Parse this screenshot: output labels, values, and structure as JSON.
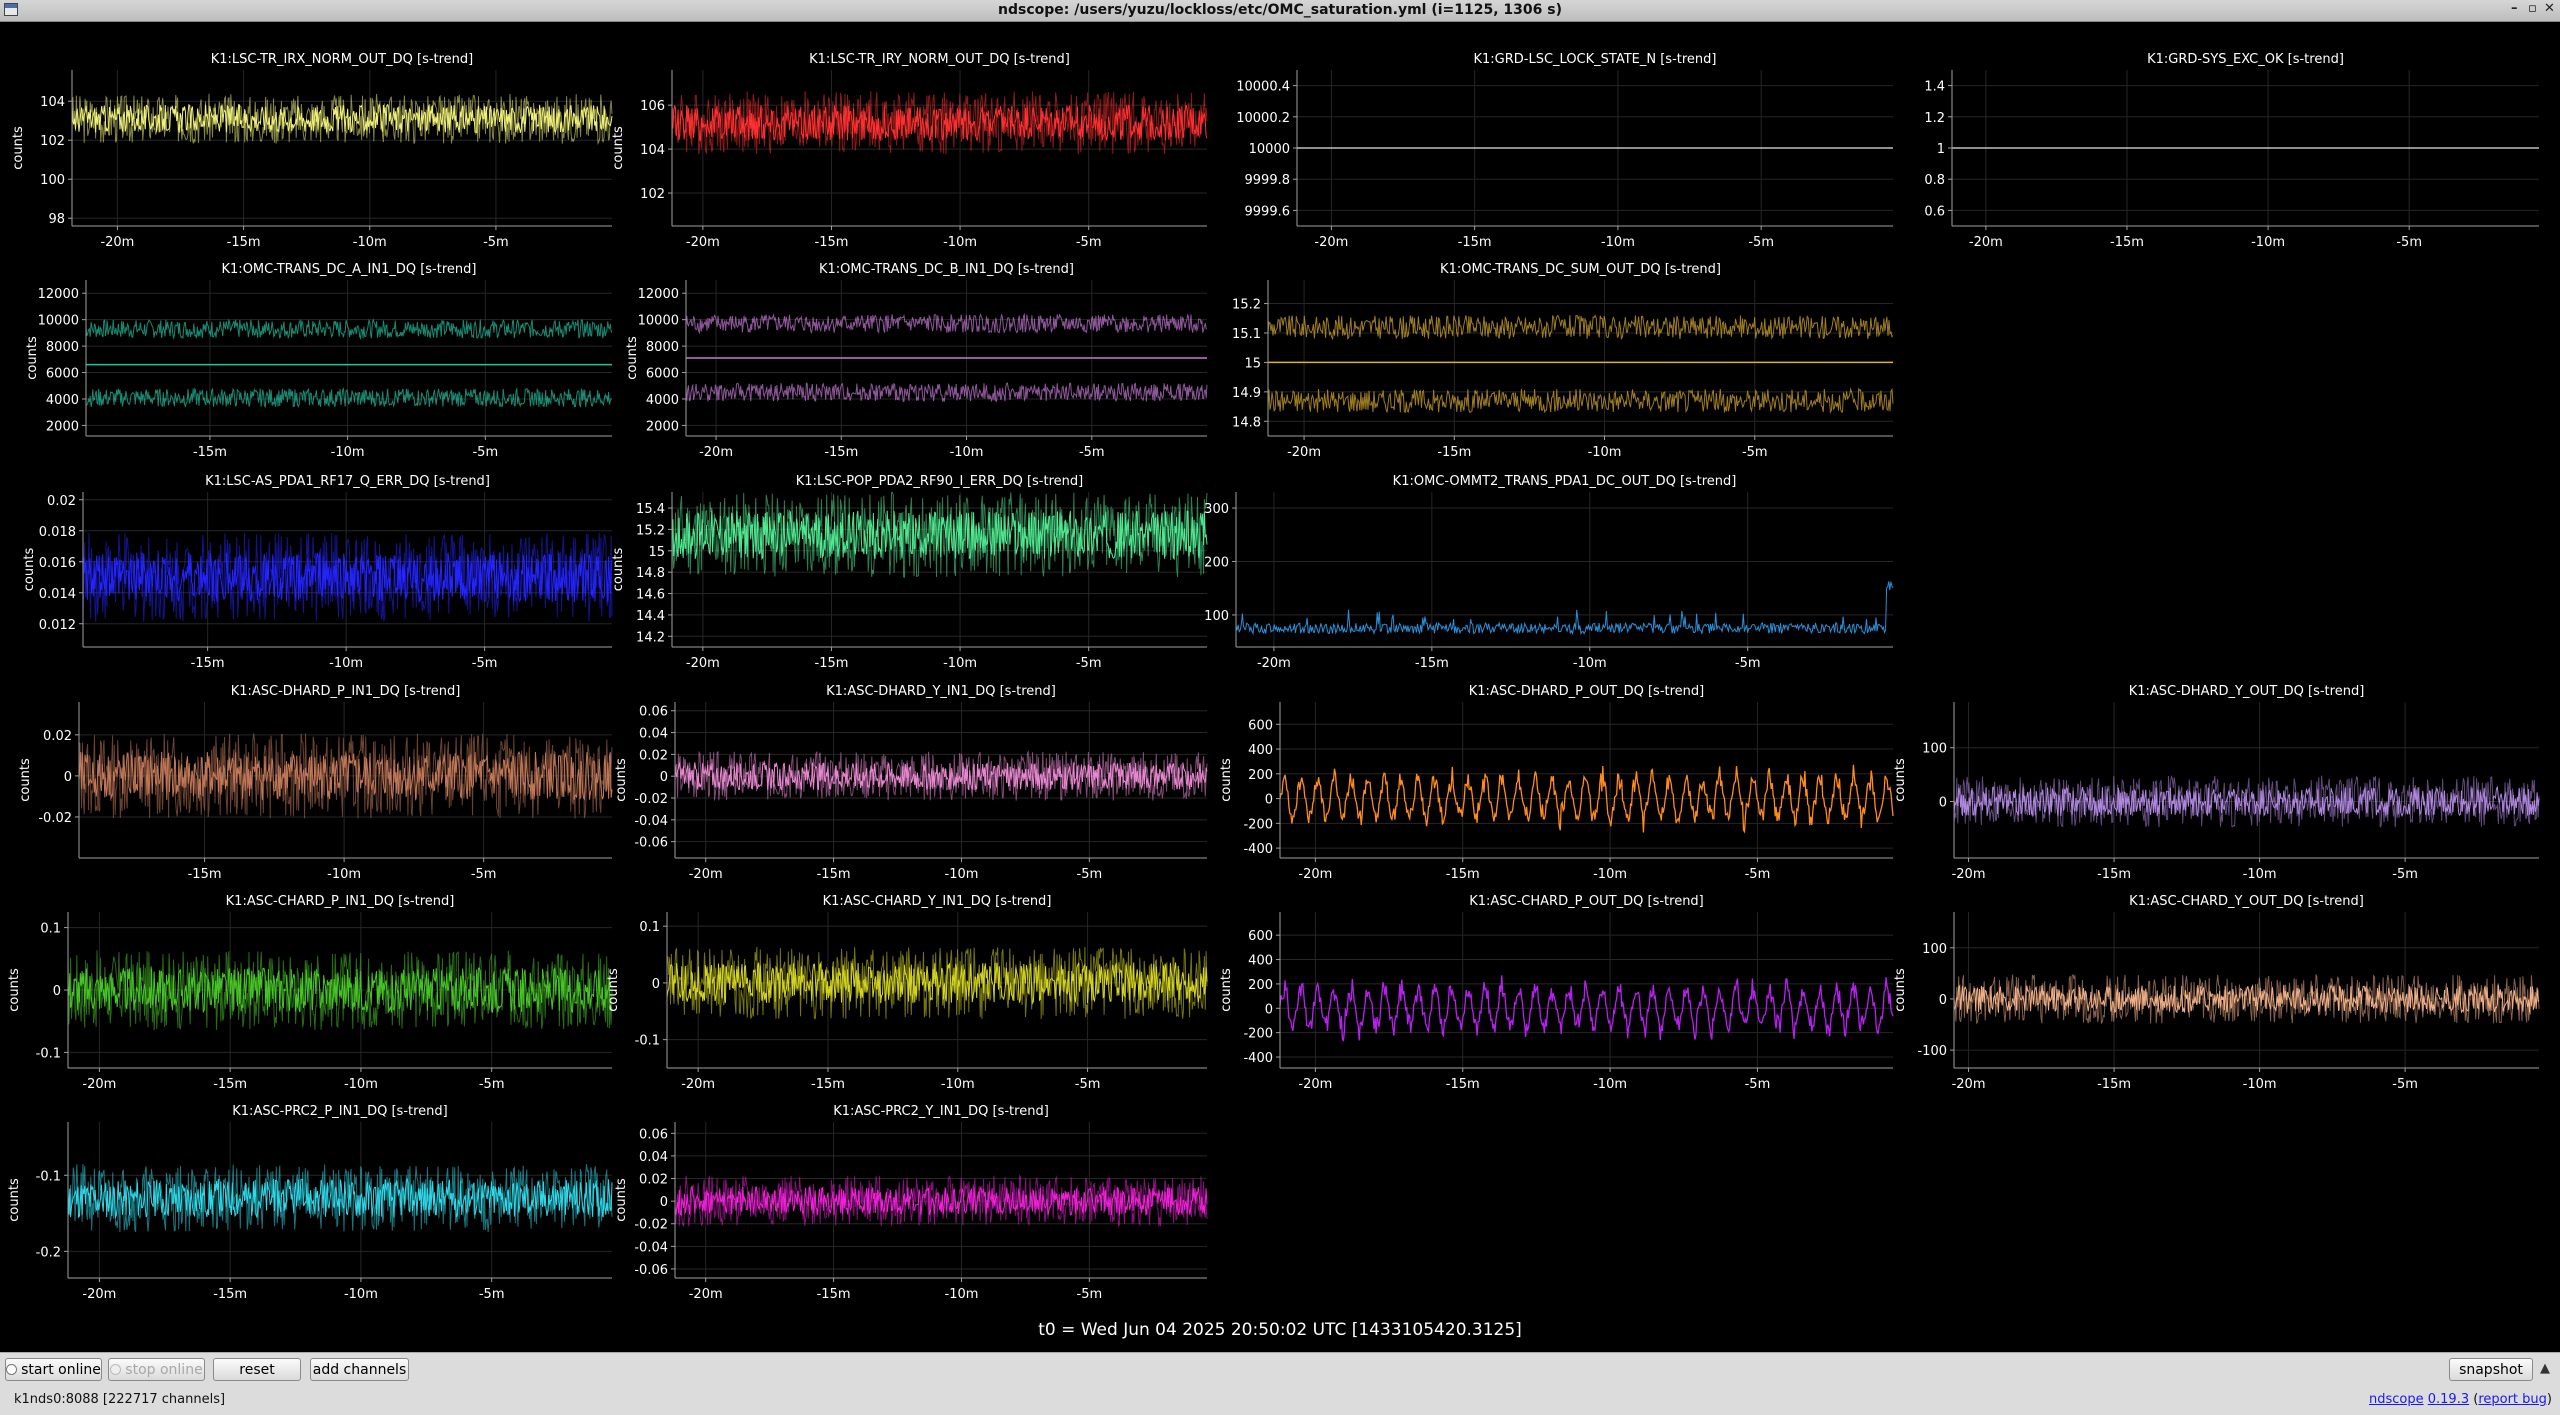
{
  "window": {
    "title": "ndscope: /users/yuzu/lockloss/etc/OMC_saturation.yml (i=1125, 1306 s)",
    "minimize": "–",
    "maximize": "▫",
    "close": "✕"
  },
  "colors": {
    "background": "#000000",
    "grid": "#2a2a2a",
    "axis": "#9a9a9a",
    "text": "#ffffff"
  },
  "chart_data": [
    {
      "type": "line",
      "title": "K1:LSC-TR_IRX_NORM_OUT_DQ [s-trend]",
      "ylabel": "counts",
      "xlim": [
        -21.8,
        -0.4
      ],
      "ylim": [
        97.6,
        105.6
      ],
      "yticks": [
        {
          "v": 104,
          "label": "104"
        },
        {
          "v": 102,
          "label": "102"
        },
        {
          "v": 100,
          "label": "100"
        },
        {
          "v": 98,
          "label": "98"
        }
      ],
      "xticks": [
        {
          "v": -20,
          "label": "-20m"
        },
        {
          "v": -15,
          "label": "-15m"
        },
        {
          "v": -10,
          "label": "-10m"
        },
        {
          "v": -5,
          "label": "-5m"
        }
      ],
      "color": "#f0f07a",
      "shape": "noisy",
      "center": 103.1,
      "amp": 0.8,
      "grid": true
    },
    {
      "type": "line",
      "title": "K1:LSC-TR_IRY_NORM_OUT_DQ [s-trend]",
      "ylabel": "counts",
      "xlim": [
        -21.2,
        -0.4
      ],
      "ylim": [
        100.5,
        107.6
      ],
      "yticks": [
        {
          "v": 106,
          "label": "106"
        },
        {
          "v": 104,
          "label": "104"
        },
        {
          "v": 102,
          "label": "102"
        }
      ],
      "xticks": [
        {
          "v": -20,
          "label": "-20m"
        },
        {
          "v": -15,
          "label": "-15m"
        },
        {
          "v": -10,
          "label": "-10m"
        },
        {
          "v": -5,
          "label": "-5m"
        }
      ],
      "color": "#ff3030",
      "shape": "noisy",
      "center": 105.2,
      "amp": 0.9,
      "grid": true
    },
    {
      "type": "line",
      "title": "K1:GRD-LSC_LOCK_STATE_N [s-trend]",
      "ylabel": "",
      "xlim": [
        -21.2,
        -0.4
      ],
      "ylim": [
        9999.5,
        10000.5
      ],
      "yticks": [
        {
          "v": 10000.4,
          "label": "10000.4"
        },
        {
          "v": 10000.2,
          "label": "10000.2"
        },
        {
          "v": 10000,
          "label": "10000"
        },
        {
          "v": 9999.8,
          "label": "9999.8"
        },
        {
          "v": 9999.6,
          "label": "9999.6"
        }
      ],
      "xticks": [
        {
          "v": -20,
          "label": "-20m"
        },
        {
          "v": -15,
          "label": "-15m"
        },
        {
          "v": -10,
          "label": "-10m"
        },
        {
          "v": -5,
          "label": "-5m"
        }
      ],
      "color": "#e6e6e6",
      "shape": "flat",
      "center": 10000,
      "amp": 0,
      "grid": true
    },
    {
      "type": "line",
      "title": "K1:GRD-SYS_EXC_OK [s-trend]",
      "ylabel": "",
      "xlim": [
        -21.2,
        -0.4
      ],
      "ylim": [
        0.5,
        1.5
      ],
      "yticks": [
        {
          "v": 1.4,
          "label": "1.4"
        },
        {
          "v": 1.2,
          "label": "1.2"
        },
        {
          "v": 1,
          "label": "1"
        },
        {
          "v": 0.8,
          "label": "0.8"
        },
        {
          "v": 0.6,
          "label": "0.6"
        }
      ],
      "xticks": [
        {
          "v": -20,
          "label": "-20m"
        },
        {
          "v": -15,
          "label": "-15m"
        },
        {
          "v": -10,
          "label": "-10m"
        },
        {
          "v": -5,
          "label": "-5m"
        }
      ],
      "color": "#e6e6e6",
      "shape": "flat",
      "center": 1,
      "amp": 0,
      "grid": true
    },
    {
      "type": "line",
      "title": "K1:OMC-TRANS_DC_A_IN1_DQ [s-trend]",
      "ylabel": "counts",
      "xlim": [
        -19.5,
        -0.4
      ],
      "ylim": [
        1200,
        13000
      ],
      "yticks": [
        {
          "v": 12000,
          "label": "12000"
        },
        {
          "v": 10000,
          "label": "10000"
        },
        {
          "v": 8000,
          "label": "8000"
        },
        {
          "v": 6000,
          "label": "6000"
        },
        {
          "v": 4000,
          "label": "4000"
        },
        {
          "v": 2000,
          "label": "2000"
        }
      ],
      "xticks": [
        {
          "v": -15,
          "label": "-15m"
        },
        {
          "v": -10,
          "label": "-10m"
        },
        {
          "v": -5,
          "label": "-5m"
        }
      ],
      "color": "#22c4a4",
      "shape": "split",
      "center": 6600,
      "band_hi": 9300,
      "band_lo": 4100,
      "amp": 700,
      "grid": true
    },
    {
      "type": "line",
      "title": "K1:OMC-TRANS_DC_B_IN1_DQ [s-trend]",
      "ylabel": "counts",
      "xlim": [
        -21.2,
        -0.4
      ],
      "ylim": [
        1200,
        13000
      ],
      "yticks": [
        {
          "v": 12000,
          "label": "12000"
        },
        {
          "v": 10000,
          "label": "10000"
        },
        {
          "v": 8000,
          "label": "8000"
        },
        {
          "v": 6000,
          "label": "6000"
        },
        {
          "v": 4000,
          "label": "4000"
        },
        {
          "v": 2000,
          "label": "2000"
        }
      ],
      "xticks": [
        {
          "v": -20,
          "label": "-20m"
        },
        {
          "v": -15,
          "label": "-15m"
        },
        {
          "v": -10,
          "label": "-10m"
        },
        {
          "v": -5,
          "label": "-5m"
        }
      ],
      "color": "#c87ad8",
      "shape": "split",
      "center": 7100,
      "band_hi": 9700,
      "band_lo": 4500,
      "amp": 700,
      "grid": true
    },
    {
      "type": "line",
      "title": "K1:OMC-TRANS_DC_SUM_OUT_DQ [s-trend]",
      "ylabel": "",
      "xlim": [
        -21.2,
        -0.4
      ],
      "ylim": [
        14.75,
        15.28
      ],
      "yticks": [
        {
          "v": 15.2,
          "label": "15.2"
        },
        {
          "v": 15.1,
          "label": "15.1"
        },
        {
          "v": 15,
          "label": "15"
        },
        {
          "v": 14.9,
          "label": "14.9"
        },
        {
          "v": 14.8,
          "label": "14.8"
        }
      ],
      "xticks": [
        {
          "v": -20,
          "label": "-20m"
        },
        {
          "v": -15,
          "label": "-15m"
        },
        {
          "v": -10,
          "label": "-10m"
        },
        {
          "v": -5,
          "label": "-5m"
        }
      ],
      "color": "#e0b030",
      "shape": "split",
      "center": 15.0,
      "band_hi": 15.12,
      "band_lo": 14.87,
      "amp": 0.04,
      "grid": true
    },
    {
      "type": "line",
      "title": "K1:LSC-AS_PDA1_RF17_Q_ERR_DQ [s-trend]",
      "ylabel": "counts",
      "xlim": [
        -19.5,
        -0.4
      ],
      "ylim": [
        0.0105,
        0.0205
      ],
      "yticks": [
        {
          "v": 0.02,
          "label": "0.02"
        },
        {
          "v": 0.018,
          "label": "0.018"
        },
        {
          "v": 0.016,
          "label": "0.016"
        },
        {
          "v": 0.014,
          "label": "0.014"
        },
        {
          "v": 0.012,
          "label": "0.012"
        }
      ],
      "xticks": [
        {
          "v": -15,
          "label": "-15m"
        },
        {
          "v": -10,
          "label": "-10m"
        },
        {
          "v": -5,
          "label": "-5m"
        }
      ],
      "color": "#2424ff",
      "shape": "noisy",
      "center": 0.015,
      "amp": 0.0018,
      "grid": true
    },
    {
      "type": "line",
      "title": "K1:LSC-POP_PDA2_RF90_I_ERR_DQ [s-trend]",
      "ylabel": "counts",
      "xlim": [
        -21.2,
        -0.4
      ],
      "ylim": [
        14.1,
        15.55
      ],
      "yticks": [
        {
          "v": 15.4,
          "label": "15.4"
        },
        {
          "v": 15.2,
          "label": "15.2"
        },
        {
          "v": 15,
          "label": "15"
        },
        {
          "v": 14.8,
          "label": "14.8"
        },
        {
          "v": 14.6,
          "label": "14.6"
        },
        {
          "v": 14.4,
          "label": "14.4"
        },
        {
          "v": 14.2,
          "label": "14.2"
        }
      ],
      "xticks": [
        {
          "v": -20,
          "label": "-20m"
        },
        {
          "v": -15,
          "label": "-15m"
        },
        {
          "v": -10,
          "label": "-10m"
        },
        {
          "v": -5,
          "label": "-5m"
        }
      ],
      "color": "#50e890",
      "shape": "noisy",
      "center": 15.15,
      "amp": 0.25,
      "grid": true
    },
    {
      "type": "line",
      "title": "K1:OMC-OMMT2_TRANS_PDA1_DC_OUT_DQ [s-trend]",
      "ylabel": "",
      "xlim": [
        -21.2,
        -0.4
      ],
      "ylim": [
        40,
        330
      ],
      "yticks": [
        {
          "v": 300,
          "label": "300"
        },
        {
          "v": 200,
          "label": "200"
        },
        {
          "v": 100,
          "label": "100"
        }
      ],
      "xticks": [
        {
          "v": -20,
          "label": "-20m"
        },
        {
          "v": -15,
          "label": "-15m"
        },
        {
          "v": -10,
          "label": "-10m"
        },
        {
          "v": -5,
          "label": "-5m"
        }
      ],
      "color": "#2a8fd8",
      "shape": "spike",
      "center": 75,
      "amp": 10,
      "grid": true
    },
    {
      "type": "line",
      "title": "K1:ASC-DHARD_P_IN1_DQ [s-trend]",
      "ylabel": "counts",
      "xlim": [
        -19.5,
        -0.4
      ],
      "ylim": [
        -0.04,
        0.036
      ],
      "yticks": [
        {
          "v": 0.02,
          "label": "0.02"
        },
        {
          "v": 0,
          "label": "0"
        },
        {
          "v": -0.02,
          "label": "-0.02"
        }
      ],
      "xticks": [
        {
          "v": -15,
          "label": "-15m"
        },
        {
          "v": -10,
          "label": "-10m"
        },
        {
          "v": -5,
          "label": "-5m"
        }
      ],
      "color": "#c07858",
      "shape": "noisy",
      "center": 0,
      "amp": 0.013,
      "grid": true
    },
    {
      "type": "line",
      "title": "K1:ASC-DHARD_Y_IN1_DQ [s-trend]",
      "ylabel": "counts",
      "xlim": [
        -21.2,
        -0.4
      ],
      "ylim": [
        -0.075,
        0.068
      ],
      "yticks": [
        {
          "v": 0.06,
          "label": "0.06"
        },
        {
          "v": 0.04,
          "label": "0.04"
        },
        {
          "v": 0.02,
          "label": "0.02"
        },
        {
          "v": 0,
          "label": "0"
        },
        {
          "v": -0.02,
          "label": "-0.02"
        },
        {
          "v": -0.04,
          "label": "-0.04"
        },
        {
          "v": -0.06,
          "label": "-0.06"
        }
      ],
      "xticks": [
        {
          "v": -20,
          "label": "-20m"
        },
        {
          "v": -15,
          "label": "-15m"
        },
        {
          "v": -10,
          "label": "-10m"
        },
        {
          "v": -5,
          "label": "-5m"
        }
      ],
      "color": "#e888d0",
      "shape": "noisy",
      "center": 0,
      "amp": 0.014,
      "grid": true
    },
    {
      "type": "line",
      "title": "K1:ASC-DHARD_P_OUT_DQ [s-trend]",
      "ylabel": "counts",
      "xlim": [
        -21.2,
        -0.4
      ],
      "ylim": [
        -480,
        780
      ],
      "yticks": [
        {
          "v": 600,
          "label": "600"
        },
        {
          "v": 400,
          "label": "400"
        },
        {
          "v": 200,
          "label": "200"
        },
        {
          "v": 0,
          "label": "0"
        },
        {
          "v": -200,
          "label": "-200"
        },
        {
          "v": -400,
          "label": "-400"
        }
      ],
      "xticks": [
        {
          "v": -20,
          "label": "-20m"
        },
        {
          "v": -15,
          "label": "-15m"
        },
        {
          "v": -10,
          "label": "-10m"
        },
        {
          "v": -5,
          "label": "-5m"
        }
      ],
      "color": "#ff8c1a",
      "shape": "oscillate",
      "center": 0,
      "amp": 160,
      "grid": true
    },
    {
      "type": "line",
      "title": "K1:ASC-DHARD_Y_OUT_DQ [s-trend]",
      "ylabel": "counts",
      "xlim": [
        -20.5,
        -0.4
      ],
      "ylim": [
        -105,
        185
      ],
      "yticks": [
        {
          "v": 100,
          "label": "100"
        },
        {
          "v": 0,
          "label": "0"
        }
      ],
      "xticks": [
        {
          "v": -20,
          "label": "-20m"
        },
        {
          "v": -15,
          "label": "-15m"
        },
        {
          "v": -10,
          "label": "-10m"
        },
        {
          "v": -5,
          "label": "-5m"
        }
      ],
      "color": "#b088e0",
      "shape": "noisy",
      "center": 0,
      "amp": 30,
      "grid": true
    },
    {
      "type": "line",
      "title": "K1:ASC-CHARD_P_IN1_DQ [s-trend]",
      "ylabel": "counts",
      "xlim": [
        -21.2,
        -0.4
      ],
      "ylim": [
        -0.125,
        0.125
      ],
      "yticks": [
        {
          "v": 0.1,
          "label": "0.1"
        },
        {
          "v": 0,
          "label": "0"
        },
        {
          "v": -0.1,
          "label": "-0.1"
        }
      ],
      "xticks": [
        {
          "v": -20,
          "label": "-20m"
        },
        {
          "v": -15,
          "label": "-15m"
        },
        {
          "v": -10,
          "label": "-10m"
        },
        {
          "v": -5,
          "label": "-5m"
        }
      ],
      "color": "#48c428",
      "shape": "noisy",
      "center": 0,
      "amp": 0.04,
      "grid": true
    },
    {
      "type": "line",
      "title": "K1:ASC-CHARD_Y_IN1_DQ [s-trend]",
      "ylabel": "counts",
      "xlim": [
        -21.2,
        -0.4
      ],
      "ylim": [
        -0.15,
        0.125
      ],
      "yticks": [
        {
          "v": 0.1,
          "label": "0.1"
        },
        {
          "v": 0,
          "label": "0"
        },
        {
          "v": -0.1,
          "label": "-0.1"
        }
      ],
      "xticks": [
        {
          "v": -20,
          "label": "-20m"
        },
        {
          "v": -15,
          "label": "-15m"
        },
        {
          "v": -10,
          "label": "-10m"
        },
        {
          "v": -5,
          "label": "-5m"
        }
      ],
      "color": "#d4d422",
      "shape": "noisy",
      "center": 0,
      "amp": 0.04,
      "grid": true
    },
    {
      "type": "line",
      "title": "K1:ASC-CHARD_P_OUT_DQ [s-trend]",
      "ylabel": "counts",
      "xlim": [
        -21.2,
        -0.4
      ],
      "ylim": [
        -490,
        790
      ],
      "yticks": [
        {
          "v": 600,
          "label": "600"
        },
        {
          "v": 400,
          "label": "400"
        },
        {
          "v": 200,
          "label": "200"
        },
        {
          "v": 0,
          "label": "0"
        },
        {
          "v": -200,
          "label": "-200"
        },
        {
          "v": -400,
          "label": "-400"
        }
      ],
      "xticks": [
        {
          "v": -20,
          "label": "-20m"
        },
        {
          "v": -15,
          "label": "-15m"
        },
        {
          "v": -10,
          "label": "-10m"
        },
        {
          "v": -5,
          "label": "-5m"
        }
      ],
      "color": "#b820f0",
      "shape": "oscillate",
      "center": 0,
      "amp": 160,
      "grid": true
    },
    {
      "type": "line",
      "title": "K1:ASC-CHARD_Y_OUT_DQ [s-trend]",
      "ylabel": "counts",
      "xlim": [
        -20.5,
        -0.4
      ],
      "ylim": [
        -135,
        170
      ],
      "yticks": [
        {
          "v": 100,
          "label": "100"
        },
        {
          "v": 0,
          "label": "0"
        },
        {
          "v": -100,
          "label": "-100"
        }
      ],
      "xticks": [
        {
          "v": -20,
          "label": "-20m"
        },
        {
          "v": -15,
          "label": "-15m"
        },
        {
          "v": -10,
          "label": "-10m"
        },
        {
          "v": -5,
          "label": "-5m"
        }
      ],
      "color": "#f0b088",
      "shape": "noisy",
      "center": 0,
      "amp": 30,
      "grid": true
    },
    {
      "type": "line",
      "title": "K1:ASC-PRC2_P_IN1_DQ [s-trend]",
      "ylabel": "counts",
      "xlim": [
        -21.2,
        -0.4
      ],
      "ylim": [
        -0.235,
        -0.03
      ],
      "yticks": [
        {
          "v": -0.1,
          "label": "-0.1"
        },
        {
          "v": -0.2,
          "label": "-0.2"
        }
      ],
      "xticks": [
        {
          "v": -20,
          "label": "-20m"
        },
        {
          "v": -15,
          "label": "-15m"
        },
        {
          "v": -10,
          "label": "-10m"
        },
        {
          "v": -5,
          "label": "-5m"
        }
      ],
      "color": "#30d8e8",
      "shape": "noisy",
      "center": -0.13,
      "amp": 0.028,
      "grid": true
    },
    {
      "type": "line",
      "title": "K1:ASC-PRC2_Y_IN1_DQ [s-trend]",
      "ylabel": "counts",
      "xlim": [
        -21.2,
        -0.4
      ],
      "ylim": [
        -0.068,
        0.07
      ],
      "yticks": [
        {
          "v": 0.06,
          "label": "0.06"
        },
        {
          "v": 0.04,
          "label": "0.04"
        },
        {
          "v": 0.02,
          "label": "0.02"
        },
        {
          "v": 0,
          "label": "0"
        },
        {
          "v": -0.02,
          "label": "-0.02"
        },
        {
          "v": -0.04,
          "label": "-0.04"
        },
        {
          "v": -0.06,
          "label": "-0.06"
        }
      ],
      "xticks": [
        {
          "v": -20,
          "label": "-20m"
        },
        {
          "v": -15,
          "label": "-15m"
        },
        {
          "v": -10,
          "label": "-10m"
        },
        {
          "v": -5,
          "label": "-5m"
        }
      ],
      "color": "#f020d8",
      "shape": "noisy",
      "center": 0,
      "amp": 0.014,
      "grid": true
    }
  ],
  "t0_label": "t0 = Wed Jun 04 2025 20:50:02 UTC [1433105420.3125]",
  "controls": {
    "start_online": "start online",
    "stop_online": "stop online",
    "reset": "reset",
    "add_channels": "add channels",
    "snapshot": "snapshot",
    "expand_icon": "▲"
  },
  "status": {
    "server": "k1nds0:8088 [222717 channels]",
    "app_link": "ndscope",
    "version_link": "0.19.3",
    "report_link": "report bug"
  }
}
